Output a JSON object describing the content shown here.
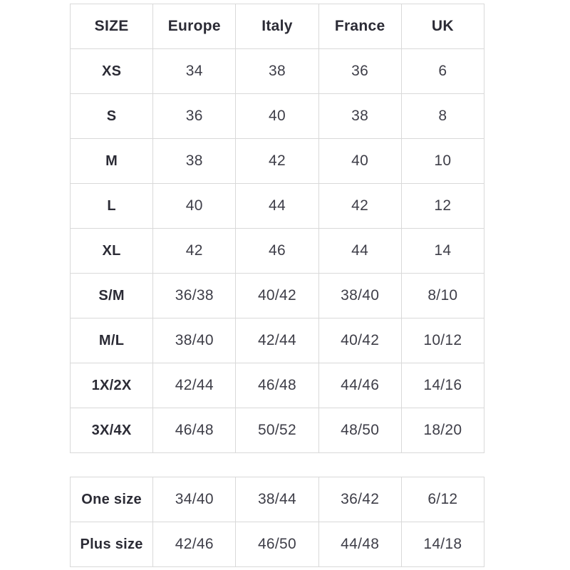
{
  "colors": {
    "background": "#ffffff",
    "border": "#d9d9d9",
    "header_text": "#2b2b35",
    "cell_text": "#3e3e48"
  },
  "size_table": {
    "columns": [
      "SIZE",
      "Europe",
      "Italy",
      "France",
      "UK"
    ],
    "rows": [
      {
        "label": "XS",
        "values": [
          "34",
          "38",
          "36",
          "6"
        ]
      },
      {
        "label": "S",
        "values": [
          "36",
          "40",
          "38",
          "8"
        ]
      },
      {
        "label": "M",
        "values": [
          "38",
          "42",
          "40",
          "10"
        ]
      },
      {
        "label": "L",
        "values": [
          "40",
          "44",
          "42",
          "12"
        ]
      },
      {
        "label": "XL",
        "values": [
          "42",
          "46",
          "44",
          "14"
        ]
      },
      {
        "label": "S/M",
        "values": [
          "36/38",
          "40/42",
          "38/40",
          "8/10"
        ]
      },
      {
        "label": "M/L",
        "values": [
          "38/40",
          "42/44",
          "40/42",
          "10/12"
        ]
      },
      {
        "label": "1X/2X",
        "values": [
          "42/44",
          "46/48",
          "44/46",
          "14/16"
        ]
      },
      {
        "label": "3X/4X",
        "values": [
          "46/48",
          "50/52",
          "48/50",
          "18/20"
        ]
      }
    ]
  },
  "special_table": {
    "rows": [
      {
        "label": "One size",
        "values": [
          "34/40",
          "38/44",
          "36/42",
          "6/12"
        ]
      },
      {
        "label": "Plus size",
        "values": [
          "42/46",
          "46/50",
          "44/48",
          "14/18"
        ]
      }
    ]
  }
}
